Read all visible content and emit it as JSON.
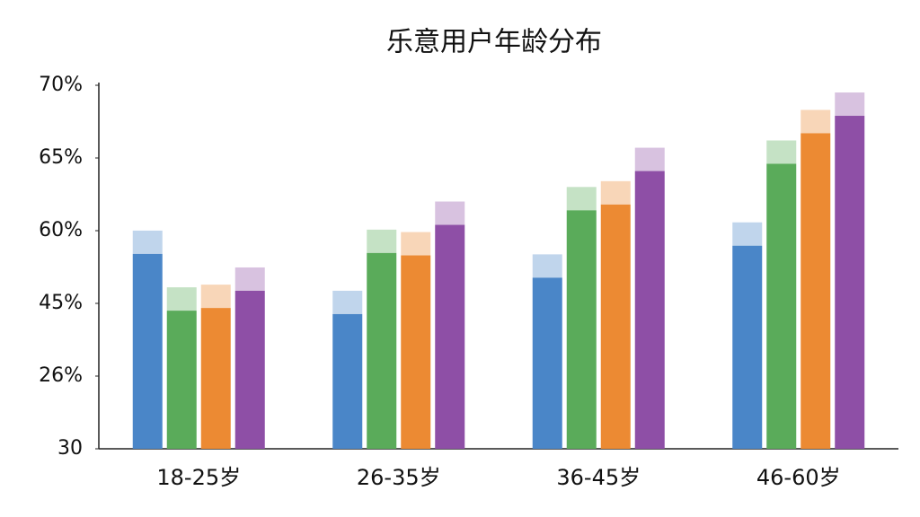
{
  "chart_data": {
    "type": "bar",
    "title": "乐意用户年龄分布",
    "categories": [
      "18-25岁",
      "26-35岁",
      "36-45岁",
      "46-60岁"
    ],
    "series": [
      {
        "color": "#4a86c8",
        "values": [
          55.2,
          42.2,
          50.3,
          56.9
        ]
      },
      {
        "color": "#5aab5a",
        "values": [
          43.1,
          55.4,
          61.4,
          64.6
        ]
      },
      {
        "color": "#ec8a33",
        "values": [
          43.8,
          54.9,
          61.8,
          66.7
        ]
      },
      {
        "color": "#8e4fa6",
        "values": [
          47.6,
          60.4,
          64.1,
          67.9
        ]
      }
    ],
    "yticks": [
      {
        "value": 70,
        "label": "70%"
      },
      {
        "value": 65,
        "label": "65%"
      },
      {
        "value": 60,
        "label": "60%"
      },
      {
        "value": 45,
        "label": "45%"
      },
      {
        "value": 26,
        "label": "26%"
      },
      30
    ]
  }
}
